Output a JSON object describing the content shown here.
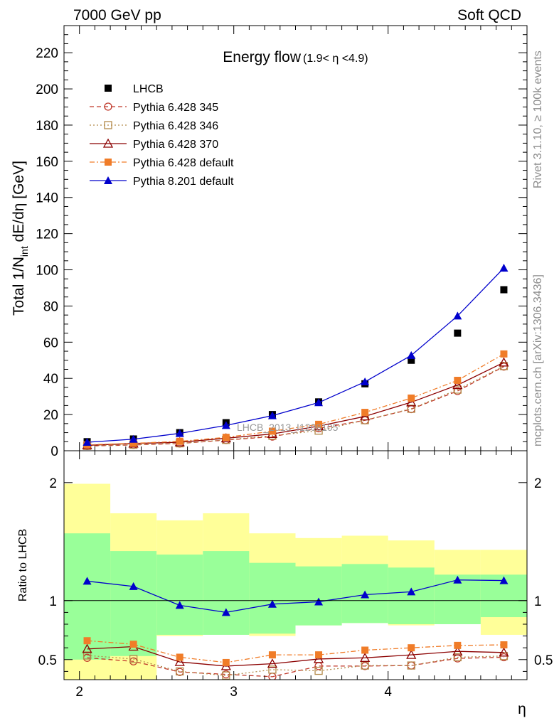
{
  "header": {
    "left": "7000 GeV pp",
    "right": "Soft QCD"
  },
  "side_labels": {
    "rivet": "Rivet 3.1.10, ≥ 100k events",
    "mcplots": "mcplots.cern.ch [arXiv:1306.3436]"
  },
  "chart_data": [
    {
      "type": "line",
      "title": "Energy flow",
      "title_range": "(1.9< η <4.9)",
      "ylabel": "Total 1/N",
      "ylabel_sub": "int",
      "ylabel_rest": " dE/dη [GeV]",
      "xlim": [
        1.9,
        4.9
      ],
      "ylim": [
        0,
        235
      ],
      "yticks": [
        0,
        20,
        40,
        60,
        80,
        100,
        120,
        140,
        160,
        180,
        200,
        220
      ],
      "watermark": "LHCB_2013_I1208105",
      "x": [
        2.05,
        2.35,
        2.65,
        2.95,
        3.25,
        3.55,
        3.85,
        4.15,
        4.45,
        4.75
      ],
      "series": [
        {
          "name": "LHCB",
          "color": "#000000",
          "marker": "square-filled",
          "values": [
            5.0,
            6.5,
            10.0,
            15.5,
            20.0,
            27.0,
            37.0,
            50.0,
            65.0,
            89.0
          ]
        },
        {
          "name": "Pythia 6.428 345",
          "color": "#c0392b",
          "marker": "circle-open",
          "dash": "6,4",
          "values": [
            2.6,
            3.2,
            4.0,
            5.9,
            7.8,
            12.4,
            16.8,
            23.0,
            33.0,
            46.5
          ]
        },
        {
          "name": "Pythia 6.428 346",
          "color": "#b38a4a",
          "marker": "square-open",
          "dash": "2,3",
          "values": [
            2.7,
            3.3,
            4.1,
            6.0,
            8.3,
            11.1,
            16.9,
            23.2,
            33.8,
            46.8
          ]
        },
        {
          "name": "Pythia 6.428 370",
          "color": "#8b0000",
          "marker": "triangle-open",
          "dash": "",
          "values": [
            3.0,
            4.0,
            4.7,
            6.9,
            9.3,
            13.6,
            19.0,
            26.8,
            36.3,
            48.8
          ]
        },
        {
          "name": "Pythia 6.428 default",
          "color": "#f07c28",
          "marker": "square-filled",
          "dash": "7,3,2,3",
          "values": [
            3.3,
            4.1,
            5.2,
            7.4,
            10.8,
            14.6,
            21.2,
            29.1,
            38.9,
            53.5
          ]
        },
        {
          "name": "Pythia 8.201 default",
          "color": "#0000cc",
          "marker": "triangle-filled",
          "dash": "",
          "values": [
            4.7,
            6.4,
            9.6,
            14.0,
            19.4,
            26.6,
            38.1,
            52.7,
            74.5,
            101.0
          ]
        }
      ]
    },
    {
      "type": "line",
      "ylabel": "Ratio to LHCB",
      "xlabel": "η",
      "xlim": [
        1.9,
        4.9
      ],
      "ylim": [
        0.33,
        2.27
      ],
      "yticks": [
        "0.5",
        "1",
        "2"
      ],
      "xticks": [
        "2",
        "3",
        "4"
      ],
      "reference_line": 1,
      "uncertainty_bins": {
        "edges": [
          1.9,
          2.2,
          2.5,
          2.8,
          3.1,
          3.4,
          3.7,
          4.0,
          4.3,
          4.6,
          4.9
        ],
        "outer_low": [
          0.33,
          0.33,
          0.7,
          0.74,
          0.7,
          0.79,
          0.81,
          0.79,
          0.81,
          0.71
        ],
        "outer_high": [
          1.99,
          1.74,
          1.68,
          1.74,
          1.57,
          1.53,
          1.55,
          1.51,
          1.43,
          1.43
        ],
        "inner_low": [
          0.5,
          0.53,
          0.71,
          0.71,
          0.72,
          0.79,
          0.81,
          0.8,
          0.8,
          0.86
        ],
        "inner_high": [
          1.57,
          1.42,
          1.39,
          1.42,
          1.32,
          1.29,
          1.31,
          1.28,
          1.22,
          1.22
        ]
      },
      "series": [
        {
          "name": "Pythia 6.428 345",
          "values": [
            0.515,
            0.485,
            0.395,
            0.375,
            0.355,
            0.445,
            0.445,
            0.45,
            0.51,
            0.52
          ]
        },
        {
          "name": "Pythia 6.428 346",
          "values": [
            0.535,
            0.505,
            0.4,
            0.365,
            0.415,
            0.405,
            0.45,
            0.45,
            0.52,
            0.53
          ]
        },
        {
          "name": "Pythia 6.428 370",
          "values": [
            0.59,
            0.61,
            0.48,
            0.445,
            0.465,
            0.505,
            0.515,
            0.54,
            0.57,
            0.56
          ]
        },
        {
          "name": "Pythia 6.428 default",
          "values": [
            0.66,
            0.63,
            0.52,
            0.475,
            0.54,
            0.54,
            0.58,
            0.6,
            0.62,
            0.625
          ]
        },
        {
          "name": "Pythia 8.201 default",
          "values": [
            1.165,
            1.12,
            0.96,
            0.9,
            0.97,
            0.99,
            1.05,
            1.075,
            1.175,
            1.17
          ]
        }
      ]
    }
  ]
}
